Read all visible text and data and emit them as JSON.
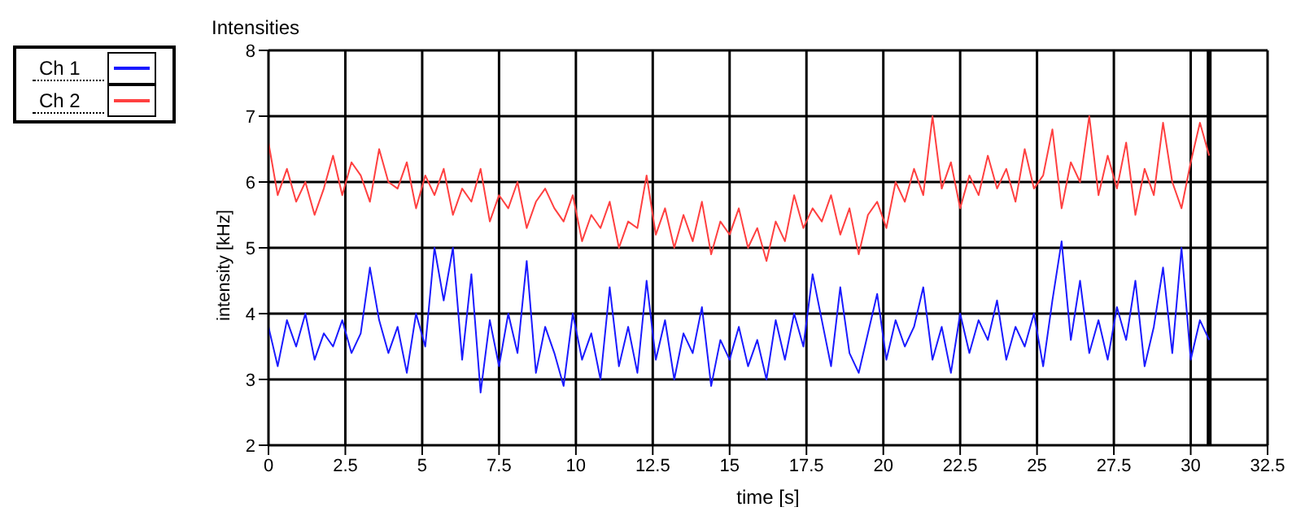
{
  "chart_data": {
    "type": "line",
    "title": "Intensities",
    "xlabel": "time [s]",
    "ylabel": "intensity [kHz]",
    "x": [
      0,
      0.3,
      0.6,
      0.9,
      1.2,
      1.5,
      1.8,
      2.1,
      2.4,
      2.7,
      3.0,
      3.3,
      3.6,
      3.9,
      4.2,
      4.5,
      4.8,
      5.1,
      5.4,
      5.7,
      6.0,
      6.3,
      6.6,
      6.9,
      7.2,
      7.5,
      7.8,
      8.1,
      8.4,
      8.7,
      9.0,
      9.3,
      9.6,
      9.9,
      10.2,
      10.5,
      10.8,
      11.1,
      11.4,
      11.7,
      12.0,
      12.3,
      12.6,
      12.9,
      13.2,
      13.5,
      13.8,
      14.1,
      14.4,
      14.7,
      15.0,
      15.3,
      15.6,
      15.9,
      16.2,
      16.5,
      16.8,
      17.1,
      17.4,
      17.7,
      18.0,
      18.3,
      18.6,
      18.9,
      19.2,
      19.5,
      19.8,
      20.1,
      20.4,
      20.7,
      21.0,
      21.3,
      21.6,
      21.9,
      22.2,
      22.5,
      22.8,
      23.1,
      23.4,
      23.7,
      24.0,
      24.3,
      24.6,
      24.9,
      25.2,
      25.5,
      25.8,
      26.1,
      26.4,
      26.7,
      27.0,
      27.3,
      27.6,
      27.9,
      28.2,
      28.5,
      28.8,
      29.1,
      29.4,
      29.7,
      30.0,
      30.3,
      30.6
    ],
    "series": [
      {
        "name": "Ch 1",
        "color": "#1a1aff",
        "values": [
          3.8,
          3.2,
          3.9,
          3.5,
          4.0,
          3.3,
          3.7,
          3.5,
          3.9,
          3.4,
          3.7,
          4.7,
          3.9,
          3.4,
          3.8,
          3.1,
          4.0,
          3.5,
          5.0,
          4.2,
          5.0,
          3.3,
          4.6,
          2.8,
          3.9,
          3.2,
          4.0,
          3.4,
          4.8,
          3.1,
          3.8,
          3.4,
          2.9,
          4.0,
          3.3,
          3.7,
          3.0,
          4.4,
          3.2,
          3.8,
          3.1,
          4.5,
          3.3,
          3.9,
          3.0,
          3.7,
          3.4,
          4.1,
          2.9,
          3.6,
          3.3,
          3.8,
          3.2,
          3.6,
          3.0,
          3.9,
          3.3,
          4.0,
          3.5,
          4.6,
          3.9,
          3.2,
          4.4,
          3.4,
          3.1,
          3.7,
          4.3,
          3.3,
          3.9,
          3.5,
          3.8,
          4.4,
          3.3,
          3.8,
          3.1,
          4.0,
          3.4,
          3.9,
          3.6,
          4.2,
          3.3,
          3.8,
          3.5,
          4.0,
          3.2,
          4.2,
          5.1,
          3.6,
          4.5,
          3.4,
          3.9,
          3.3,
          4.1,
          3.6,
          4.5,
          3.2,
          3.8,
          4.7,
          3.4,
          5.0,
          3.3,
          3.9,
          3.6
        ]
      },
      {
        "name": "Ch 2",
        "color": "#ff4040",
        "values": [
          6.6,
          5.8,
          6.2,
          5.7,
          6.0,
          5.5,
          5.9,
          6.4,
          5.8,
          6.3,
          6.1,
          5.7,
          6.5,
          6.0,
          5.9,
          6.3,
          5.6,
          6.1,
          5.8,
          6.2,
          5.5,
          5.9,
          5.7,
          6.2,
          5.4,
          5.8,
          5.6,
          6.0,
          5.3,
          5.7,
          5.9,
          5.6,
          5.4,
          5.8,
          5.1,
          5.5,
          5.3,
          5.7,
          5.0,
          5.4,
          5.3,
          6.1,
          5.2,
          5.6,
          5.0,
          5.5,
          5.1,
          5.7,
          4.9,
          5.4,
          5.2,
          5.6,
          5.0,
          5.3,
          4.8,
          5.4,
          5.1,
          5.8,
          5.3,
          5.6,
          5.4,
          5.8,
          5.2,
          5.6,
          4.9,
          5.5,
          5.7,
          5.3,
          6.0,
          5.7,
          6.2,
          5.8,
          7.0,
          5.9,
          6.3,
          5.6,
          6.1,
          5.8,
          6.4,
          5.9,
          6.2,
          5.7,
          6.5,
          5.9,
          6.1,
          6.8,
          5.6,
          6.3,
          6.0,
          7.0,
          5.8,
          6.4,
          5.9,
          6.6,
          5.5,
          6.2,
          5.8,
          6.9,
          6.0,
          5.6,
          6.3,
          6.9,
          6.4
        ]
      }
    ],
    "xlim": [
      0,
      32.5
    ],
    "xticks": [
      0,
      2.5,
      5,
      7.5,
      10,
      12.5,
      15,
      17.5,
      20,
      22.5,
      25,
      27.5,
      30,
      32.5
    ],
    "ylim": [
      2,
      8
    ],
    "yticks": [
      2,
      3,
      4,
      5,
      6,
      7,
      8
    ],
    "ref_lines": [
      {
        "axis": "x",
        "value": 30.6,
        "color": "#000000"
      }
    ],
    "grid": true,
    "legend": "top left",
    "marker": "none",
    "line_style": "solid"
  }
}
